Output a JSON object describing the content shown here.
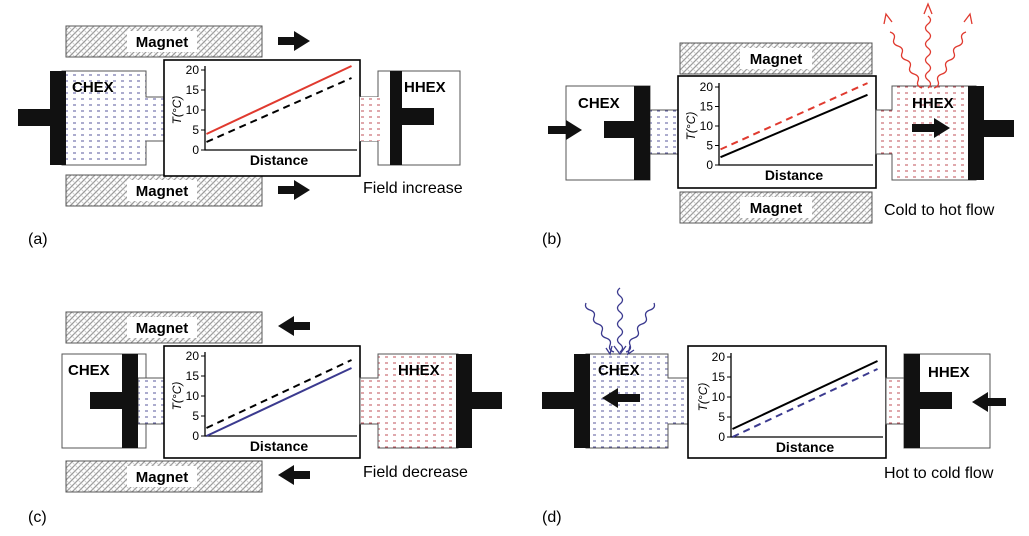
{
  "magnet_label": "Magnet",
  "cold_hex_label": "CHEX",
  "hot_hex_label": "HHEX",
  "distance_label": "Distance",
  "temp_axis_label": "T(°C)",
  "y_ticks": [
    "20",
    "15",
    "10",
    "5",
    "0"
  ],
  "colors": {
    "hot_line": "#e03a2f",
    "cold_line": "#3b3a8f",
    "dashed_line": "#000000",
    "hot_fill_dots": "#c0505a",
    "cold_fill_dots": "#5a5a9e",
    "magnet_hatch": "#9a9a9a"
  },
  "panels": [
    {
      "id": "a",
      "tag": "(a)",
      "caption": "Field increase"
    },
    {
      "id": "b",
      "tag": "(b)",
      "caption": "Cold to hot flow"
    },
    {
      "id": "c",
      "tag": "(c)",
      "caption": "Field decrease"
    },
    {
      "id": "d",
      "tag": "(d)",
      "caption": "Hot to cold flow"
    }
  ],
  "chart_data": [
    {
      "type": "line",
      "panel": "a",
      "xlabel": "Distance",
      "ylabel": "T(°C)",
      "ylim": [
        0,
        20
      ],
      "series": [
        {
          "style": "solid",
          "color": "#e03a2f",
          "x": [
            0,
            1
          ],
          "y": [
            4,
            21
          ]
        },
        {
          "style": "dashed",
          "color": "#000000",
          "x": [
            0,
            1
          ],
          "y": [
            2,
            18
          ]
        }
      ]
    },
    {
      "type": "line",
      "panel": "b",
      "xlabel": "Distance",
      "ylabel": "T(°C)",
      "ylim": [
        0,
        20
      ],
      "series": [
        {
          "style": "dashed",
          "color": "#e03a2f",
          "x": [
            0,
            1
          ],
          "y": [
            4,
            21
          ]
        },
        {
          "style": "solid",
          "color": "#000000",
          "x": [
            0,
            1
          ],
          "y": [
            2,
            18
          ]
        }
      ]
    },
    {
      "type": "line",
      "panel": "c",
      "xlabel": "Distance",
      "ylabel": "T(°C)",
      "ylim": [
        0,
        20
      ],
      "series": [
        {
          "style": "dashed",
          "color": "#000000",
          "x": [
            0,
            1
          ],
          "y": [
            2,
            19
          ]
        },
        {
          "style": "solid",
          "color": "#3b3a8f",
          "x": [
            0,
            1
          ],
          "y": [
            0,
            17
          ]
        }
      ]
    },
    {
      "type": "line",
      "panel": "d",
      "xlabel": "Distance",
      "ylabel": "T(°C)",
      "ylim": [
        0,
        20
      ],
      "series": [
        {
          "style": "solid",
          "color": "#000000",
          "x": [
            0,
            1
          ],
          "y": [
            2,
            19
          ]
        },
        {
          "style": "dashed",
          "color": "#3b3a8f",
          "x": [
            0,
            1
          ],
          "y": [
            0,
            17
          ]
        }
      ]
    }
  ]
}
